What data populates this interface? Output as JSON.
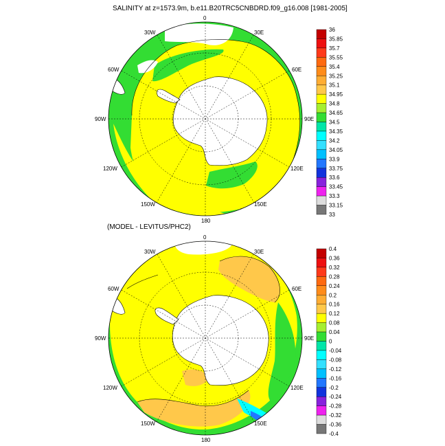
{
  "chart_data": [
    {
      "type": "polar-contour-map",
      "title": "SALINITY at z=1573.9m, b.e11.B20TRC5CNBDRD.f09_g16.008 [1981-2005]",
      "projection": "south-polar-stereographic",
      "lon_labels": [
        "0",
        "30E",
        "60E",
        "90E",
        "120E",
        "150E",
        "180",
        "150W",
        "120W",
        "90W",
        "60W",
        "30W"
      ],
      "colorbar": {
        "levels": [
          "36",
          "35.85",
          "35.7",
          "35.55",
          "35.4",
          "35.25",
          "35.1",
          "34.95",
          "34.8",
          "34.65",
          "34.5",
          "34.35",
          "34.2",
          "34.05",
          "33.9",
          "33.75",
          "33.6",
          "33.45",
          "33.3",
          "33.15",
          "33"
        ],
        "colors": [
          "#c40000",
          "#ee1010",
          "#ff3a1a",
          "#ff6a10",
          "#ff8c1a",
          "#ffad33",
          "#ffc84a",
          "#ffff00",
          "#a6ef30",
          "#33dd33",
          "#00e6a8",
          "#00ffff",
          "#33e0ff",
          "#00c0ff",
          "#2277ff",
          "#1133dd",
          "#8822dd",
          "#ee22ee",
          "#dddddd",
          "#777777"
        ]
      },
      "fields": {
        "ocean_dominant": "34.8-34.95",
        "secondary": "34.65-34.8",
        "land": "Antarctica"
      }
    },
    {
      "type": "polar-contour-map",
      "title": "(MODEL - LEVITUS/PHC2)",
      "projection": "south-polar-stereographic",
      "lon_labels": [
        "0",
        "30E",
        "60E",
        "90E",
        "120E",
        "150E",
        "180",
        "150W",
        "120W",
        "90W",
        "60W",
        "30W"
      ],
      "colorbar": {
        "levels": [
          "0.4",
          "0.36",
          "0.32",
          "0.28",
          "0.24",
          "0.2",
          "0.16",
          "0.12",
          "0.08",
          "0.04",
          "0",
          "-0.04",
          "-0.08",
          "-0.12",
          "-0.16",
          "-0.2",
          "-0.24",
          "-0.28",
          "-0.32",
          "-0.36",
          "-0.4"
        ],
        "colors": [
          "#c40000",
          "#ee1010",
          "#ff3a1a",
          "#ff6a10",
          "#ff8c1a",
          "#ffad33",
          "#ffc84a",
          "#ffff00",
          "#a6ef30",
          "#33dd33",
          "#00e6a8",
          "#00ffff",
          "#33e0ff",
          "#00c0ff",
          "#2277ff",
          "#1133dd",
          "#8822dd",
          "#ee22ee",
          "#dddddd",
          "#777777"
        ]
      },
      "fields": {
        "ocean_dominant": "0.08-0.12",
        "secondary": "0.12-0.16",
        "land": "Antarctica"
      }
    }
  ]
}
